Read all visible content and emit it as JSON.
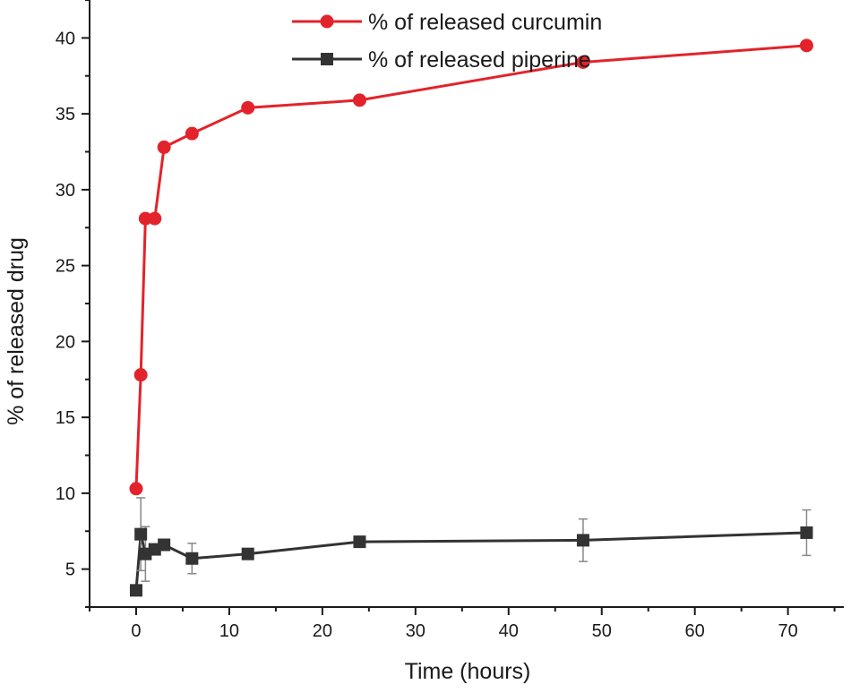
{
  "chart_data": {
    "type": "line",
    "xlabel": "Time (hours)",
    "ylabel": "% of released drug",
    "xlim": [
      -5,
      76
    ],
    "ylim": [
      2.5,
      42.5
    ],
    "x_ticks": [
      "0",
      "10",
      "20",
      "30",
      "40",
      "50",
      "60",
      "70"
    ],
    "y_ticks": [
      "5",
      "10",
      "15",
      "20",
      "25",
      "30",
      "35",
      "40"
    ],
    "x_tick_values": [
      0,
      10,
      20,
      30,
      40,
      50,
      60,
      70
    ],
    "y_tick_values": [
      5,
      10,
      15,
      20,
      25,
      30,
      35,
      40
    ],
    "grid": false,
    "legend_position": "top-center",
    "series": [
      {
        "name": "% of released curcumin",
        "color": "#e3232b",
        "marker": "circle",
        "x": [
          0,
          0.5,
          1,
          2,
          3,
          6,
          12,
          24,
          48,
          72
        ],
        "y": [
          10.3,
          17.8,
          28.1,
          28.1,
          32.8,
          33.7,
          35.4,
          35.9,
          38.4,
          39.5
        ]
      },
      {
        "name": "% of released piperine",
        "color": "#333333",
        "marker": "square",
        "x": [
          0,
          0.5,
          1,
          2,
          3,
          6,
          12,
          24,
          48,
          72
        ],
        "y": [
          3.6,
          7.3,
          6.0,
          6.3,
          6.6,
          5.7,
          6.0,
          6.8,
          6.9,
          7.4
        ],
        "error": [
          0,
          2.4,
          1.8,
          0,
          0,
          1.0,
          0,
          0,
          1.4,
          1.5
        ]
      }
    ]
  }
}
